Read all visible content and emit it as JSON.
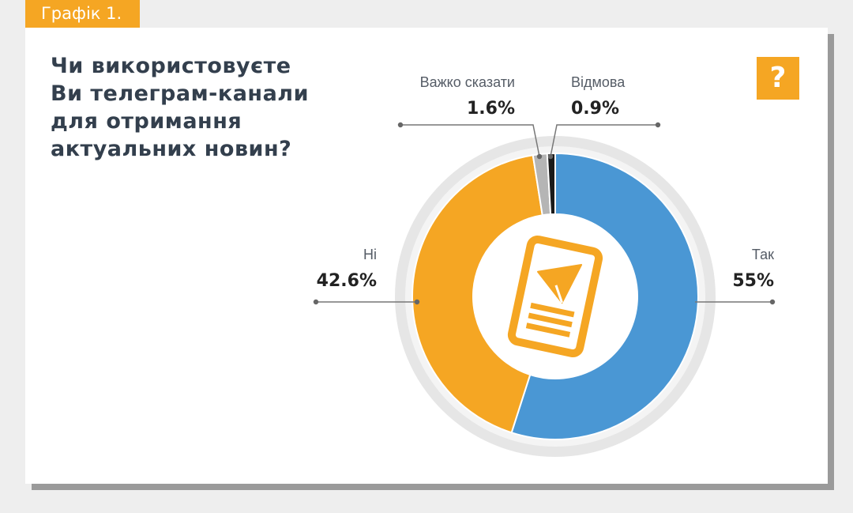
{
  "header": {
    "tag": "Графік 1."
  },
  "title": "Чи використовуєте Ви телеграм-канали для отримання актуальних новин?",
  "help_badge": "?",
  "colors": {
    "accent": "#f5a623",
    "yes": "#4a97d4",
    "no": "#f5a623",
    "hard_to_say": "#b5b5b5",
    "refusal": "#1a1a1a",
    "leader": "#777777"
  },
  "center_icon": "telegram-phone-icon",
  "chart_data": {
    "type": "pie",
    "style": "donut",
    "title": "Чи використовуєте Ви телеграм-канали для отримання актуальних новин?",
    "unit": "%",
    "slices": [
      {
        "label": "Так",
        "value": 55,
        "value_label": "55%",
        "color": "#4a97d4"
      },
      {
        "label": "Ні",
        "value": 42.6,
        "value_label": "42.6%",
        "color": "#f5a623"
      },
      {
        "label": "Важко сказати",
        "value": 1.6,
        "value_label": "1.6%",
        "color": "#b5b5b5"
      },
      {
        "label": "Відмова",
        "value": 0.9,
        "value_label": "0.9%",
        "color": "#1a1a1a"
      }
    ]
  }
}
